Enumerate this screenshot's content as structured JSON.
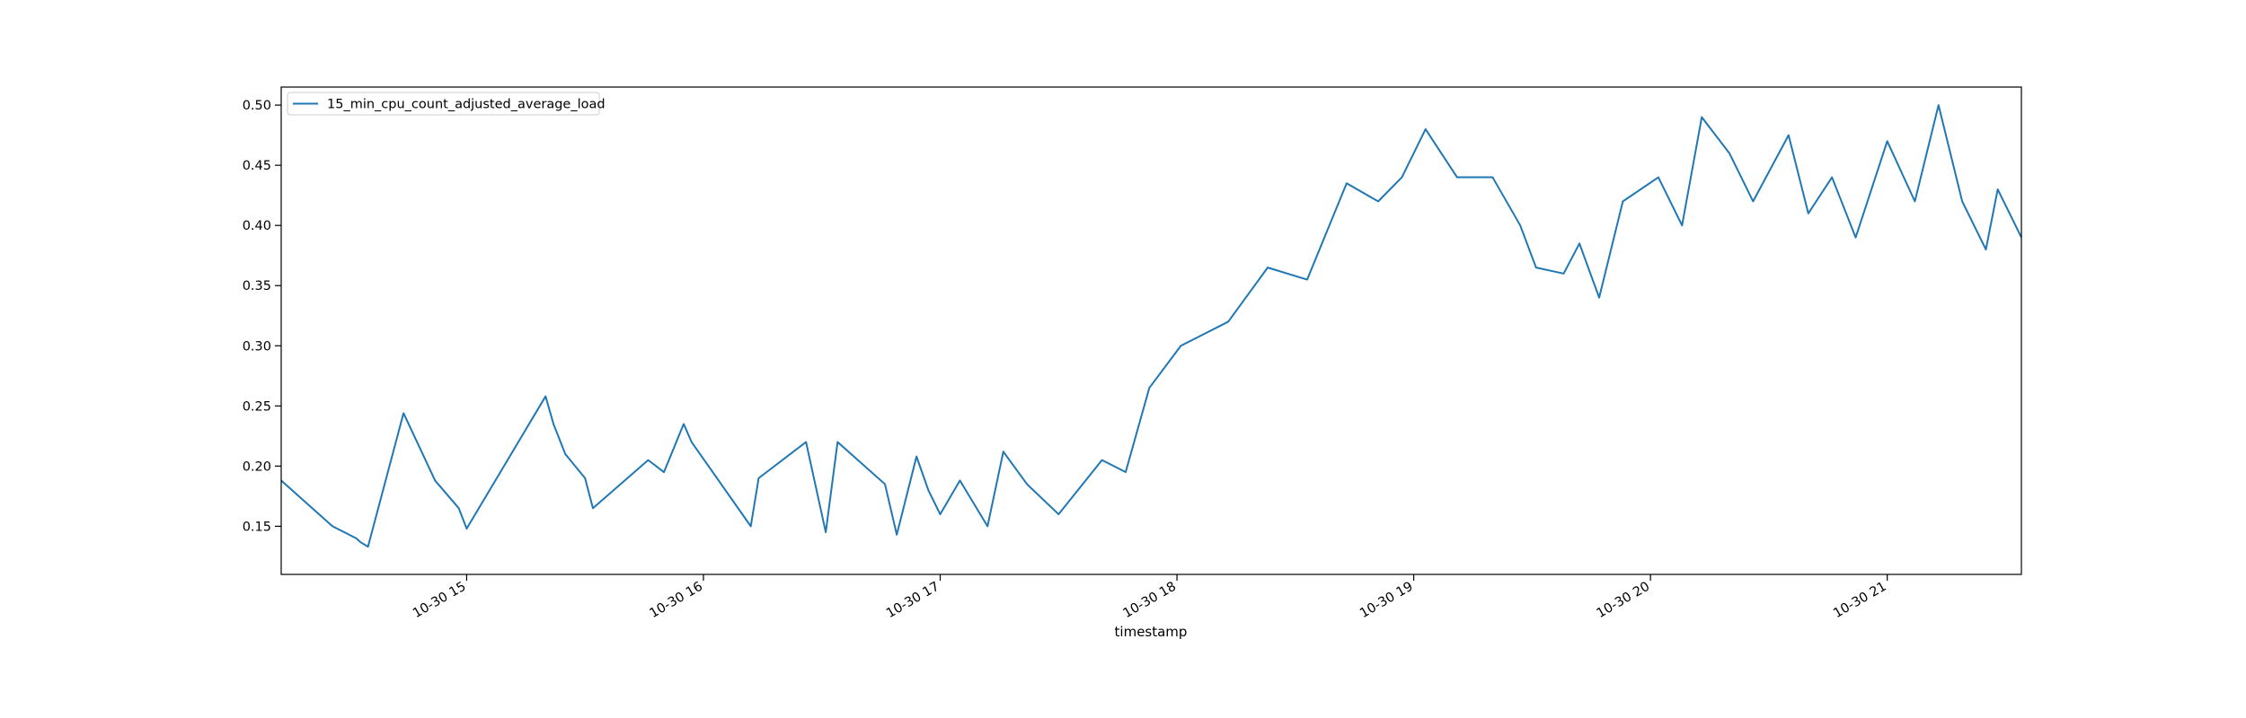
{
  "chart_data": {
    "type": "line",
    "title": "",
    "xlabel": "timestamp",
    "ylabel": "",
    "xlim": [
      "10-30 14:13",
      "10-30 21:34"
    ],
    "ylim": [
      0.11,
      0.515
    ],
    "grid": false,
    "legend_position": "top-left",
    "colors": {
      "series": "#1f77b4",
      "axes": "#000000",
      "background": "#ffffff"
    },
    "x_ticks": [
      {
        "hour": 15,
        "label": "10-30 15"
      },
      {
        "hour": 16,
        "label": "10-30 16"
      },
      {
        "hour": 17,
        "label": "10-30 17"
      },
      {
        "hour": 18,
        "label": "10-30 18"
      },
      {
        "hour": 19,
        "label": "10-30 19"
      },
      {
        "hour": 20,
        "label": "10-30 20"
      },
      {
        "hour": 21,
        "label": "10-30 21"
      }
    ],
    "y_ticks": [
      {
        "value": 0.15,
        "label": "0.15"
      },
      {
        "value": 0.2,
        "label": "0.20"
      },
      {
        "value": 0.25,
        "label": "0.25"
      },
      {
        "value": 0.3,
        "label": "0.30"
      },
      {
        "value": 0.35,
        "label": "0.35"
      },
      {
        "value": 0.4,
        "label": "0.40"
      },
      {
        "value": 0.45,
        "label": "0.45"
      },
      {
        "value": 0.5,
        "label": "0.50"
      }
    ],
    "series": [
      {
        "name": "15_min_cpu_count_adjusted_average_load",
        "x": [
          "10-30 14:13",
          "10-30 14:26",
          "10-30 14:32",
          "10-30 14:33",
          "10-30 14:35",
          "10-30 14:44",
          "10-30 14:52",
          "10-30 14:58",
          "10-30 15:00",
          "10-30 15:20",
          "10-30 15:22",
          "10-30 15:25",
          "10-30 15:30",
          "10-30 15:32",
          "10-30 15:46",
          "10-30 15:50",
          "10-30 15:55",
          "10-30 15:57",
          "10-30 16:12",
          "10-30 16:14",
          "10-30 16:26",
          "10-30 16:31",
          "10-30 16:34",
          "10-30 16:46",
          "10-30 16:49",
          "10-30 16:54",
          "10-30 16:57",
          "10-30 17:00",
          "10-30 17:05",
          "10-30 17:12",
          "10-30 17:16",
          "10-30 17:22",
          "10-30 17:30",
          "10-30 17:41",
          "10-30 17:47",
          "10-30 17:53",
          "10-30 18:01",
          "10-30 18:07",
          "10-30 18:13",
          "10-30 18:23",
          "10-30 18:33",
          "10-30 18:43",
          "10-30 18:51",
          "10-30 18:57",
          "10-30 19:03",
          "10-30 19:11",
          "10-30 19:20",
          "10-30 19:27",
          "10-30 19:31",
          "10-30 19:38",
          "10-30 19:42",
          "10-30 19:47",
          "10-30 19:53",
          "10-30 20:02",
          "10-30 20:08",
          "10-30 20:13",
          "10-30 20:20",
          "10-30 20:26",
          "10-30 20:35",
          "10-30 20:40",
          "10-30 20:46",
          "10-30 20:52",
          "10-30 21:00",
          "10-30 21:07",
          "10-30 21:13",
          "10-30 21:19",
          "10-30 21:25",
          "10-30 21:28",
          "10-30 21:34"
        ],
        "y": [
          0.188,
          0.15,
          0.14,
          0.137,
          0.133,
          0.244,
          0.188,
          0.165,
          0.148,
          0.258,
          0.235,
          0.21,
          0.19,
          0.165,
          0.205,
          0.195,
          0.235,
          0.22,
          0.15,
          0.19,
          0.22,
          0.145,
          0.22,
          0.185,
          0.143,
          0.208,
          0.18,
          0.16,
          0.188,
          0.15,
          0.212,
          0.185,
          0.16,
          0.205,
          0.195,
          0.265,
          0.3,
          0.31,
          0.32,
          0.365,
          0.355,
          0.435,
          0.42,
          0.44,
          0.48,
          0.44,
          0.44,
          0.4,
          0.365,
          0.36,
          0.385,
          0.34,
          0.42,
          0.44,
          0.4,
          0.49,
          0.46,
          0.42,
          0.475,
          0.41,
          0.44,
          0.39,
          0.47,
          0.42,
          0.5,
          0.42,
          0.38,
          0.43,
          0.39
        ]
      }
    ]
  }
}
